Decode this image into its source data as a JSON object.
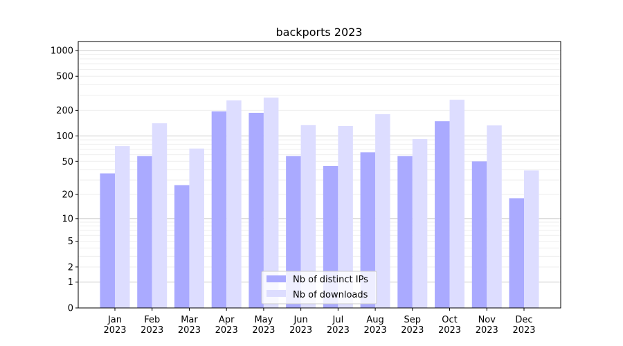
{
  "chart_data": {
    "type": "bar",
    "title": "backports 2023",
    "xlabel": "",
    "ylabel": "",
    "yscale": "symlog",
    "ylim": [
      0,
      1300
    ],
    "grid": true,
    "legend_position": "bottom-center",
    "categories": [
      "Jan\n2023",
      "Feb\n2023",
      "Mar\n2023",
      "Apr\n2023",
      "May\n2023",
      "Jun\n2023",
      "Jul\n2023",
      "Aug\n2023",
      "Sep\n2023",
      "Oct\n2023",
      "Nov\n2023",
      "Dec\n2023"
    ],
    "y_ticks": [
      0,
      1,
      2,
      5,
      10,
      20,
      50,
      100,
      200,
      500,
      1000
    ],
    "series": [
      {
        "name": "Nb of distinct IPs",
        "color": "#aaaaff",
        "values": [
          36,
          58,
          26,
          194,
          187,
          58,
          44,
          64,
          58,
          149,
          50,
          18
        ]
      },
      {
        "name": "Nb of downloads",
        "color": "#ddddff",
        "values": [
          76,
          141,
          71,
          261,
          282,
          134,
          131,
          180,
          92,
          266,
          133,
          39
        ]
      }
    ]
  }
}
